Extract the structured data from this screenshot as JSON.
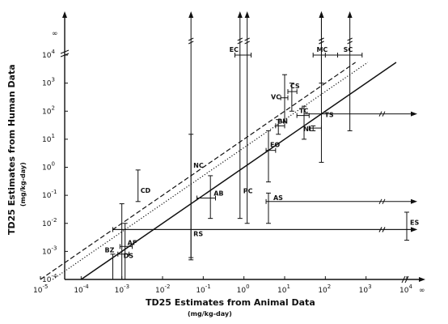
{
  "chart_data": {
    "type": "scatter",
    "xlabel": "TD25 Estimates from Animal Data",
    "xunits": "(mg/kg-day)",
    "ylabel": "TD25 Estimates from Human Data",
    "yunits": "(mg/kg-day)",
    "x_scale": "log",
    "y_scale": "log",
    "xlim": [
      1e-05,
      10000
    ],
    "ylim": [
      0.0001,
      10000
    ],
    "x_ticks": [
      1e-05,
      0.0001,
      0.001,
      0.01,
      0.1,
      1,
      10,
      100,
      1000,
      10000
    ],
    "y_ticks": [
      0.0001,
      0.001,
      0.01,
      0.1,
      1,
      10,
      100,
      1000,
      10000
    ],
    "x_tick_labels": [
      {
        "base": "10",
        "exp": "-5"
      },
      {
        "base": "10",
        "exp": "-4"
      },
      {
        "base": "10",
        "exp": "-3"
      },
      {
        "base": "10",
        "exp": "-2"
      },
      {
        "base": "10",
        "exp": "-1"
      },
      {
        "base": "10",
        "exp": "0"
      },
      {
        "base": "10",
        "exp": "1"
      },
      {
        "base": "10",
        "exp": "2"
      },
      {
        "base": "10",
        "exp": "3"
      },
      {
        "base": "10",
        "exp": "4"
      }
    ],
    "y_tick_labels": [
      {
        "base": "10",
        "exp": "-4"
      },
      {
        "base": "10",
        "exp": "-3"
      },
      {
        "base": "10",
        "exp": "-2"
      },
      {
        "base": "10",
        "exp": "-1"
      },
      {
        "base": "10",
        "exp": "0"
      },
      {
        "base": "10",
        "exp": "1"
      },
      {
        "base": "10",
        "exp": "2"
      },
      {
        "base": "10",
        "exp": "3"
      },
      {
        "base": "10",
        "exp": "4"
      }
    ],
    "infinity_label": "∞",
    "reference_lines": [
      {
        "style": "solid",
        "ratio": 1
      },
      {
        "style": "dotted",
        "ratio": 5
      },
      {
        "style": "dashed",
        "ratio": 10
      }
    ],
    "points": [
      {
        "label": "BZ",
        "x": 0.0006,
        "x_lo": 0.0006,
        "x_hi": 0.0006,
        "y": 0.0008,
        "y_lo": 0.0001,
        "y_hi": 0.0008
      },
      {
        "label": "DS",
        "x": 0.001,
        "x_lo": 0.0008,
        "x_hi": 0.0015,
        "y": 0.0008,
        "y_lo": 0.0001,
        "y_hi": 0.05
      },
      {
        "label": "AF",
        "x": 0.0012,
        "x_lo": 0.0009,
        "x_hi": 0.0018,
        "y": 0.0015,
        "y_lo": 0.0001,
        "y_hi": 0.01
      },
      {
        "label": "CD",
        "x": 0.0025,
        "x_lo": 0.0025,
        "x_hi": 0.0025,
        "y": 0.1,
        "y_lo": 0.06,
        "y_hi": 0.8
      },
      {
        "label": "RS",
        "x": 0.05,
        "x_lo": 0.0006,
        "x_hi": "inf",
        "y": 0.006,
        "y_lo": 0.0006,
        "y_hi": "inf"
      },
      {
        "label": "NC",
        "x": 0.05,
        "x_lo": 0.05,
        "x_hi": 0.05,
        "y": 0.8,
        "y_lo": 0.0005,
        "y_hi": 15
      },
      {
        "label": "AB",
        "x": 0.15,
        "x_lo": 0.07,
        "x_hi": 0.2,
        "y": 0.08,
        "y_lo": 0.015,
        "y_hi": 0.5
      },
      {
        "label": "PC",
        "x": 0.8,
        "x_lo": 0.8,
        "x_hi": 0.8,
        "y": 0.2,
        "y_lo": 0.015,
        "y_hi": "inf"
      },
      {
        "label": "EC",
        "x": 1.2,
        "x_lo": 0.6,
        "x_hi": 1.5,
        "y": 10000,
        "y_lo": 0.01,
        "y_hi": "inf"
      },
      {
        "label": "AS",
        "x": 4,
        "x_lo": 3.5,
        "x_hi": "inf",
        "y": 0.06,
        "y_lo": 0.01,
        "y_hi": 0.12
      },
      {
        "label": "EO",
        "x": 4,
        "x_lo": 3.5,
        "x_hi": 6,
        "y": 4,
        "y_lo": 0.3,
        "y_hi": 20
      },
      {
        "label": "BN",
        "x": 7,
        "x_lo": 6,
        "x_hi": 10,
        "y": 30,
        "y_lo": 15,
        "y_hi": 50
      },
      {
        "label": "VC",
        "x": 10,
        "x_lo": 8,
        "x_hi": 12,
        "y": 300,
        "y_lo": 40,
        "y_hi": 2000
      },
      {
        "label": "CS",
        "x": 15,
        "x_lo": 12,
        "x_hi": 20,
        "y": 500,
        "y_lo": 100,
        "y_hi": 1000
      },
      {
        "label": "TC",
        "x": 30,
        "x_lo": 20,
        "x_hi": 40,
        "y": 70,
        "y_lo": 10,
        "y_hi": 150
      },
      {
        "label": "NI",
        "x": 50,
        "x_lo": 40,
        "x_hi": 80,
        "y": 25,
        "y_lo": 20,
        "y_hi": 30
      },
      {
        "label": "TS",
        "x": 80,
        "x_lo": 30,
        "x_hi": "inf",
        "y": 80,
        "y_lo": 1.5,
        "y_hi": "inf"
      },
      {
        "label": "MC",
        "x": 80,
        "x_lo": 50,
        "x_hi": 200,
        "y": 10000,
        "y_lo": 1000,
        "y_hi": "inf"
      },
      {
        "label": "SC",
        "x": 400,
        "x_lo": 100,
        "x_hi": 800,
        "y": 10000,
        "y_lo": 20,
        "y_hi": "inf"
      },
      {
        "label": "ES",
        "x": 10000,
        "x_lo": 0.0006,
        "x_hi": "inf",
        "y": 0.006,
        "y_lo": 0.0025,
        "y_hi": 0.025
      }
    ]
  }
}
